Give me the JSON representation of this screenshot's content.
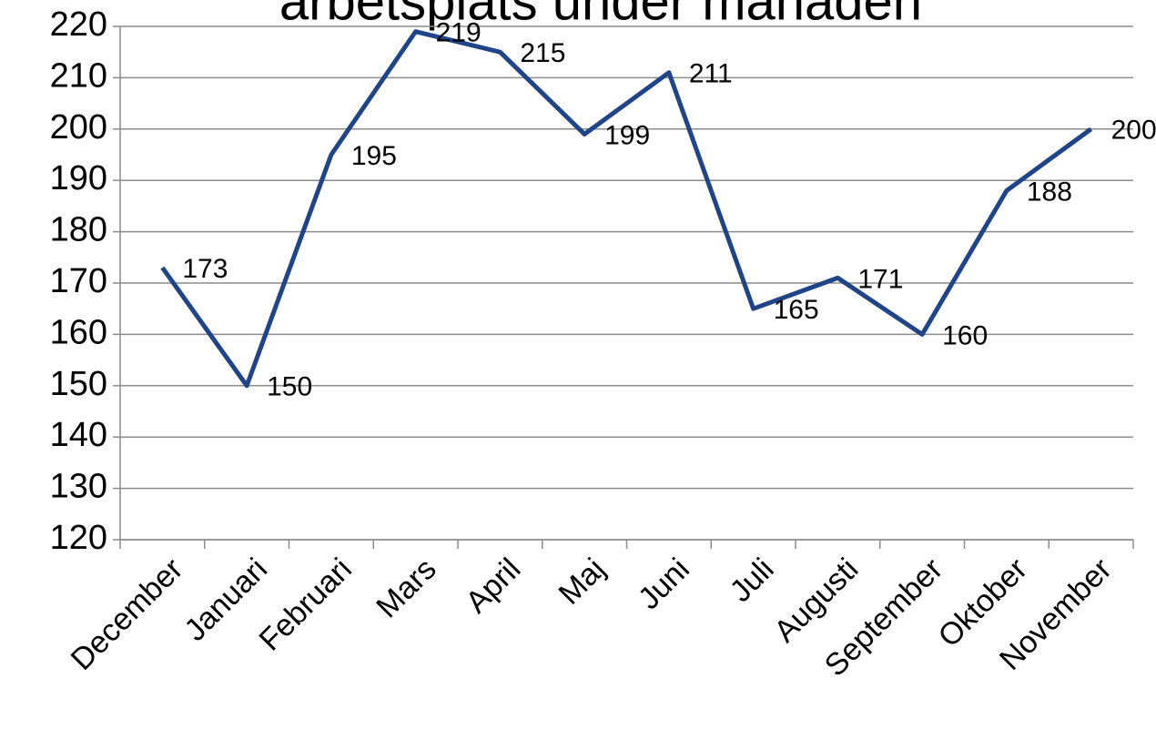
{
  "chart_data": {
    "type": "line",
    "title": "arbetsplats under månaden",
    "categories": [
      "December",
      "Januari",
      "Februari",
      "Mars",
      "April",
      "Maj",
      "Juni",
      "Juli",
      "Augusti",
      "September",
      "Oktober",
      "November"
    ],
    "values": [
      173,
      150,
      195,
      219,
      215,
      199,
      211,
      165,
      171,
      160,
      188,
      200
    ],
    "color": "#1f4488",
    "ylim": [
      120,
      220
    ],
    "yticks": [
      120,
      130,
      140,
      150,
      160,
      170,
      180,
      190,
      200,
      210,
      220
    ],
    "grid": true
  }
}
